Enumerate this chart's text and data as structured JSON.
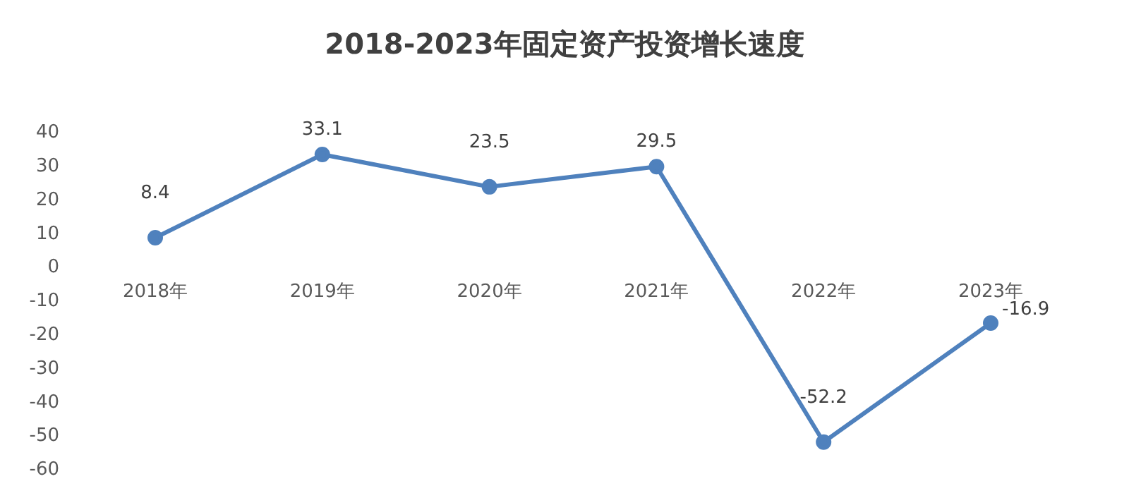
{
  "chart_data": {
    "type": "line",
    "title": "2018-2023年固定资产投资增长速度",
    "categories": [
      "2018年",
      "2019年",
      "2020年",
      "2021年",
      "2022年",
      "2023年"
    ],
    "series": [
      {
        "color": "#4f81bd",
        "values": [
          8.4,
          33.1,
          23.5,
          29.5,
          -52.2,
          -16.9
        ]
      }
    ],
    "ylim": [
      -60,
      40
    ],
    "yticks": [
      -60,
      -50,
      -40,
      -30,
      -20,
      -10,
      0,
      10,
      20,
      30,
      40
    ],
    "marker": "circle",
    "line_style": "solid",
    "data_labels": true
  }
}
